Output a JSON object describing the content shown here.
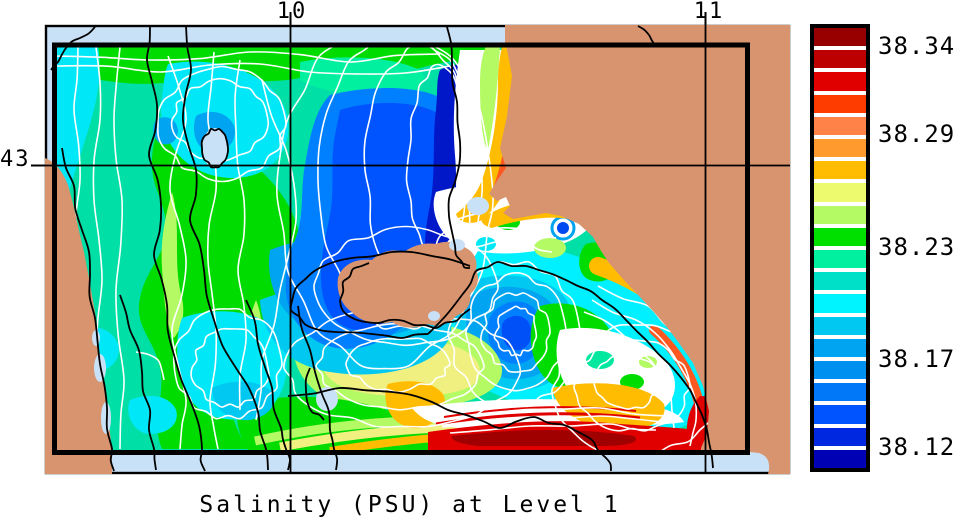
{
  "title": "Salinity (PSU) at Level 1",
  "axes": {
    "top": {
      "ticks": [
        {
          "label": "10"
        },
        {
          "label": "11"
        }
      ]
    },
    "left": {
      "ticks": [
        {
          "label": "43"
        }
      ]
    }
  },
  "colorbar": {
    "labels": [
      "38.34",
      "38.29",
      "38.23",
      "38.17",
      "38.12"
    ],
    "colors": [
      "#980000",
      "#BC0000",
      "#E00000",
      "#FF3C00",
      "#FF8248",
      "#FF9A2E",
      "#FFBC00",
      "#EEFA6E",
      "#B4FA64",
      "#00E000",
      "#00F0A0",
      "#00E0C8",
      "#00F4FF",
      "#00C8F0",
      "#00A4F0",
      "#0090F0",
      "#0078F8",
      "#0054FF",
      "#0028E0",
      "#0000B4"
    ]
  },
  "chart_data": {
    "type": "heatmap",
    "title": "Salinity (PSU) at Level 1",
    "variable": "Salinity",
    "units": "PSU",
    "level": 1,
    "x_axis": {
      "position": "top",
      "tick_labels": [
        "10",
        "11"
      ]
    },
    "y_axis": {
      "position": "left",
      "tick_labels": [
        "43"
      ]
    },
    "value_range": [
      38.12,
      38.34
    ],
    "colorbar_tick_values": [
      38.34,
      38.29,
      38.23,
      38.17,
      38.12
    ],
    "n_color_levels": 20,
    "palette_top_to_bottom": [
      "#980000",
      "#BC0000",
      "#E00000",
      "#FF3C00",
      "#FF8248",
      "#FF9A2E",
      "#FFBC00",
      "#EEFA6E",
      "#B4FA64",
      "#00E000",
      "#00F0A0",
      "#00E0C8",
      "#00F4FF",
      "#00C8F0",
      "#00A4F0",
      "#0090F0",
      "#0078F8",
      "#0054FF",
      "#0028E0",
      "#0000B4"
    ],
    "land_color": "#D8946E",
    "outer_sea_color": "#C9E1F7",
    "features": [
      "Low-salinity pool (dark blue, ~38.12 PSU) in the upper-center of the basin",
      "Low-salinity eddy with concentric contours east of the central island",
      "High-salinity band (red / dark red, ~38.30-38.34 PSU) along the southern edge",
      "Orange high-salinity fringe hugging the mainland coast",
      "Tan land mask: mainland on the right, island in the center, cape strip on the left",
      "Black grid lines at longitude 10 and 11 (top axis) and latitude 43 (left axis)",
      "Thick black rectangle marks the inner model domain; pale blue border is the outer map sea"
    ]
  }
}
